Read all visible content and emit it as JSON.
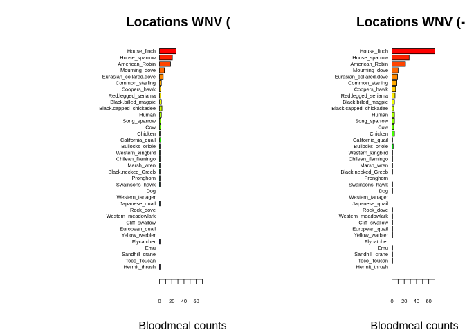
{
  "chart_data": [
    {
      "type": "bar",
      "orientation": "horizontal",
      "title": "Locations WNV (",
      "xlabel": "Bloodmeal counts",
      "xlim": [
        0,
        70
      ],
      "xticks": [
        0,
        20,
        40,
        60
      ],
      "categories": [
        "House_finch",
        "House_sparrow",
        "American_Robin",
        "Mourning_dove",
        "Eurasian_collared.dove",
        "Common_starling",
        "Coopers_hawk",
        "Red.legged_seriama",
        "Black.billed_magpie",
        "Black.capped_chickadee",
        "Human",
        "Song_sparrow",
        "Cow",
        "Chicken",
        "California_quail",
        "Bullocks_oriole",
        "Western_kingbird",
        "Chilean_flamingo",
        "Marsh_wren",
        "Black.necked_Greeb",
        "Pronghorn",
        "Swainsons_hawk",
        "Dog",
        "Western_tanager",
        "Japanese_quail",
        "Rock_dove",
        "Western_meadowlark",
        "Cliff_swallow",
        "European_quail",
        "Yellow_warbler",
        "Flycatcher",
        "Emu",
        "Sandhill_crane",
        "Toco_Toucan",
        "Hermit_thrush"
      ],
      "values": [
        27,
        21,
        18,
        8,
        6,
        3,
        2,
        2,
        3,
        4,
        3,
        2,
        2,
        1,
        2,
        1,
        1,
        1,
        1,
        1,
        1,
        1,
        0,
        0,
        1,
        0,
        0,
        0,
        0,
        0,
        1,
        0,
        0,
        0,
        1
      ],
      "colors": [
        "#ff0000",
        "#ff2200",
        "#ff4400",
        "#ff6600",
        "#ff8800",
        "#ffaa00",
        "#ffcc00",
        "#ffee00",
        "#eeff00",
        "#ccff00",
        "#aaff00",
        "#88ff00",
        "#66ff00",
        "#44ff00",
        "#22ff00",
        "#00ff00",
        "#00ff22",
        "#00ff44",
        "#00ff66",
        "#00ff88",
        "#00ffaa",
        "#00ffcc",
        "#00ffee",
        "#00eeff",
        "#00ccff",
        "#00aaff",
        "#0088ff",
        "#0066ff",
        "#0044ff",
        "#0022ff",
        "#0000ff",
        "#2200ff",
        "#4400ff",
        "#6600ff",
        "#8800ff"
      ],
      "grid": false,
      "legend": "none"
    },
    {
      "type": "bar",
      "orientation": "horizontal",
      "title": "Locations WNV (-",
      "xlabel": "Bloodmeal counts",
      "xlim": [
        0,
        70
      ],
      "xticks": [
        0,
        20,
        40,
        60
      ],
      "categories": [
        "House_finch",
        "House_sparrow",
        "American_Robin",
        "Mourning_dove",
        "Eurasian_collared.dove",
        "Common_starling",
        "Coopers_hawk",
        "Red.legged_seriama",
        "Black.billed_magpie",
        "Black.capped_chickadee",
        "Human",
        "Song_sparrow",
        "Cow",
        "Chicken",
        "California_quail",
        "Bullocks_oriole",
        "Western_kingbird",
        "Chilean_flamingo",
        "Marsh_wren",
        "Black.necked_Greeb",
        "Pronghorn",
        "Swainsons_hawk",
        "Dog",
        "Western_tanager",
        "Japanese_quail",
        "Rock_dove",
        "Western_meadowlark",
        "Cliff_swallow",
        "European_quail",
        "Yellow_warbler",
        "Flycatcher",
        "Emu",
        "Sandhill_crane",
        "Toco_Toucan",
        "Hermit_thrush"
      ],
      "values": [
        70,
        28,
        22,
        10,
        9,
        8,
        6,
        5,
        4,
        3,
        4,
        4,
        3,
        4,
        1,
        2,
        1,
        1,
        1,
        1,
        0,
        1,
        1,
        0,
        0,
        1,
        1,
        1,
        1,
        1,
        0,
        1,
        1,
        1,
        0
      ],
      "colors": [
        "#ff0000",
        "#ff2200",
        "#ff4400",
        "#ff6600",
        "#ff8800",
        "#ffaa00",
        "#ffcc00",
        "#ffee00",
        "#eeff00",
        "#ccff00",
        "#aaff00",
        "#88ff00",
        "#66ff00",
        "#44ff00",
        "#22ff00",
        "#00ff00",
        "#00ff22",
        "#00ff44",
        "#00ff66",
        "#00ff88",
        "#00ffaa",
        "#00ffcc",
        "#00ffee",
        "#00eeff",
        "#00ccff",
        "#00aaff",
        "#0088ff",
        "#0066ff",
        "#0044ff",
        "#0022ff",
        "#0000ff",
        "#2200ff",
        "#4400ff",
        "#6600ff",
        "#8800ff"
      ],
      "grid": false,
      "legend": "none"
    }
  ]
}
